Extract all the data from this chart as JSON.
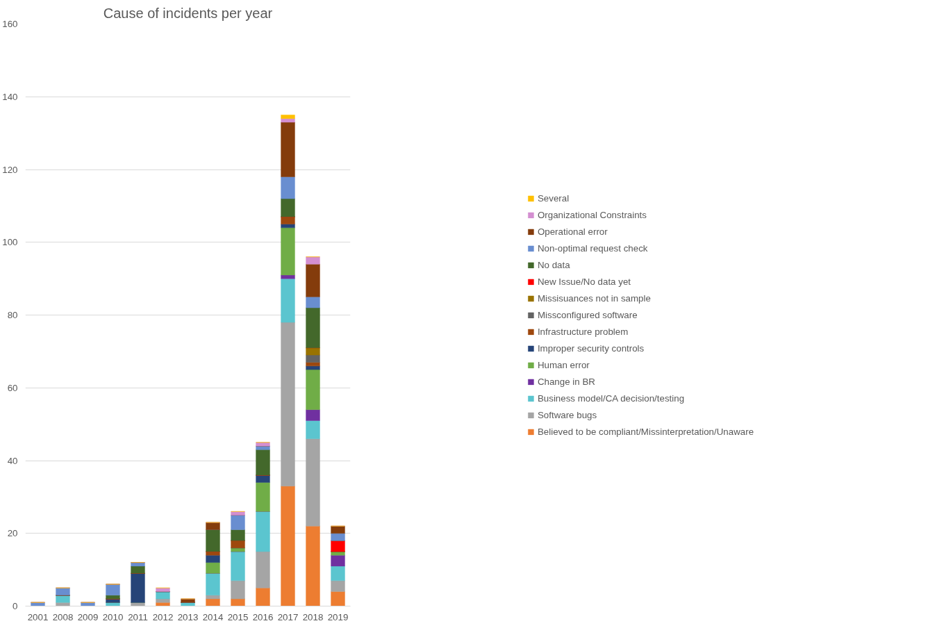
{
  "chart_data": {
    "type": "bar",
    "title": "Cause of incidents per year",
    "stacked": true,
    "categories": [
      "2001",
      "2008",
      "2009",
      "2010",
      "2011",
      "2012",
      "2013",
      "2014",
      "2015",
      "2016",
      "2017",
      "2018",
      "2019"
    ],
    "ylim": [
      0,
      160
    ],
    "yticks": [
      0,
      20,
      40,
      60,
      80,
      100,
      120,
      140,
      160
    ],
    "grid": "y",
    "legend": "right",
    "series": [
      {
        "name": "Believed to be compliant/Missinterpretation/Unaware",
        "color": "#ed7d31",
        "values": [
          0,
          0,
          0,
          0,
          0,
          1,
          0,
          2,
          2,
          5,
          33,
          22,
          4
        ]
      },
      {
        "name": "Software bugs",
        "color": "#a5a5a5",
        "values": [
          0,
          1,
          0,
          0,
          1,
          1,
          0,
          1,
          5,
          10,
          45,
          24,
          3
        ]
      },
      {
        "name": "Business model/CA decision/testing",
        "color": "#5bc5cf",
        "values": [
          0,
          2,
          0,
          1,
          0,
          2,
          1,
          6,
          8,
          11,
          12,
          5,
          4
        ]
      },
      {
        "name": "Change in BR",
        "color": "#7030a0",
        "values": [
          0,
          0,
          0,
          0,
          0,
          0,
          0,
          0,
          0,
          0,
          1,
          3,
          3
        ]
      },
      {
        "name": "Human error",
        "color": "#70ad47",
        "values": [
          0,
          0,
          0,
          0,
          0,
          0,
          0,
          3,
          1,
          8,
          13,
          11,
          1
        ]
      },
      {
        "name": "Improper security controls",
        "color": "#264478",
        "values": [
          0,
          0,
          0,
          1,
          8,
          0,
          0,
          2,
          0,
          2,
          1,
          1,
          0
        ]
      },
      {
        "name": "Infrastructure problem",
        "color": "#9e480e",
        "values": [
          0,
          0,
          0,
          0,
          0,
          0,
          0,
          1,
          2,
          0,
          2,
          1,
          0
        ]
      },
      {
        "name": "Missconfigured software",
        "color": "#636363",
        "values": [
          0,
          0,
          0,
          0,
          0,
          0,
          0,
          0,
          0,
          0,
          0,
          2,
          0
        ]
      },
      {
        "name": "Missisuances not in sample",
        "color": "#997300",
        "values": [
          0,
          0,
          0,
          0,
          0,
          0,
          0,
          0,
          0,
          0,
          0,
          2,
          0
        ]
      },
      {
        "name": "New Issue/No data yet",
        "color": "#ff0000",
        "values": [
          0,
          0,
          0,
          0,
          0,
          0,
          0,
          0,
          0,
          0,
          0,
          0,
          3
        ]
      },
      {
        "name": "No data",
        "color": "#43682b",
        "values": [
          0,
          0,
          0,
          1,
          2,
          0,
          0,
          6,
          3,
          7,
          5,
          11,
          0
        ]
      },
      {
        "name": "Non-optimal request check",
        "color": "#698ed0",
        "values": [
          1,
          2,
          1,
          3,
          1,
          0,
          0,
          0,
          4,
          1,
          6,
          3,
          2
        ]
      },
      {
        "name": "Operational error",
        "color": "#843c0c",
        "values": [
          0,
          0,
          0,
          0,
          0,
          0,
          1,
          2,
          0,
          0,
          15,
          9,
          2
        ]
      },
      {
        "name": "Organizational Constraints",
        "color": "#d48fd1",
        "values": [
          0,
          0,
          0,
          0,
          0,
          1,
          0,
          0,
          1,
          1,
          1,
          2,
          0
        ]
      },
      {
        "name": "Several",
        "color": "#ffc000",
        "values": [
          0,
          0,
          0,
          0,
          0,
          0,
          0,
          0,
          0,
          0,
          1,
          0,
          0
        ]
      }
    ]
  }
}
